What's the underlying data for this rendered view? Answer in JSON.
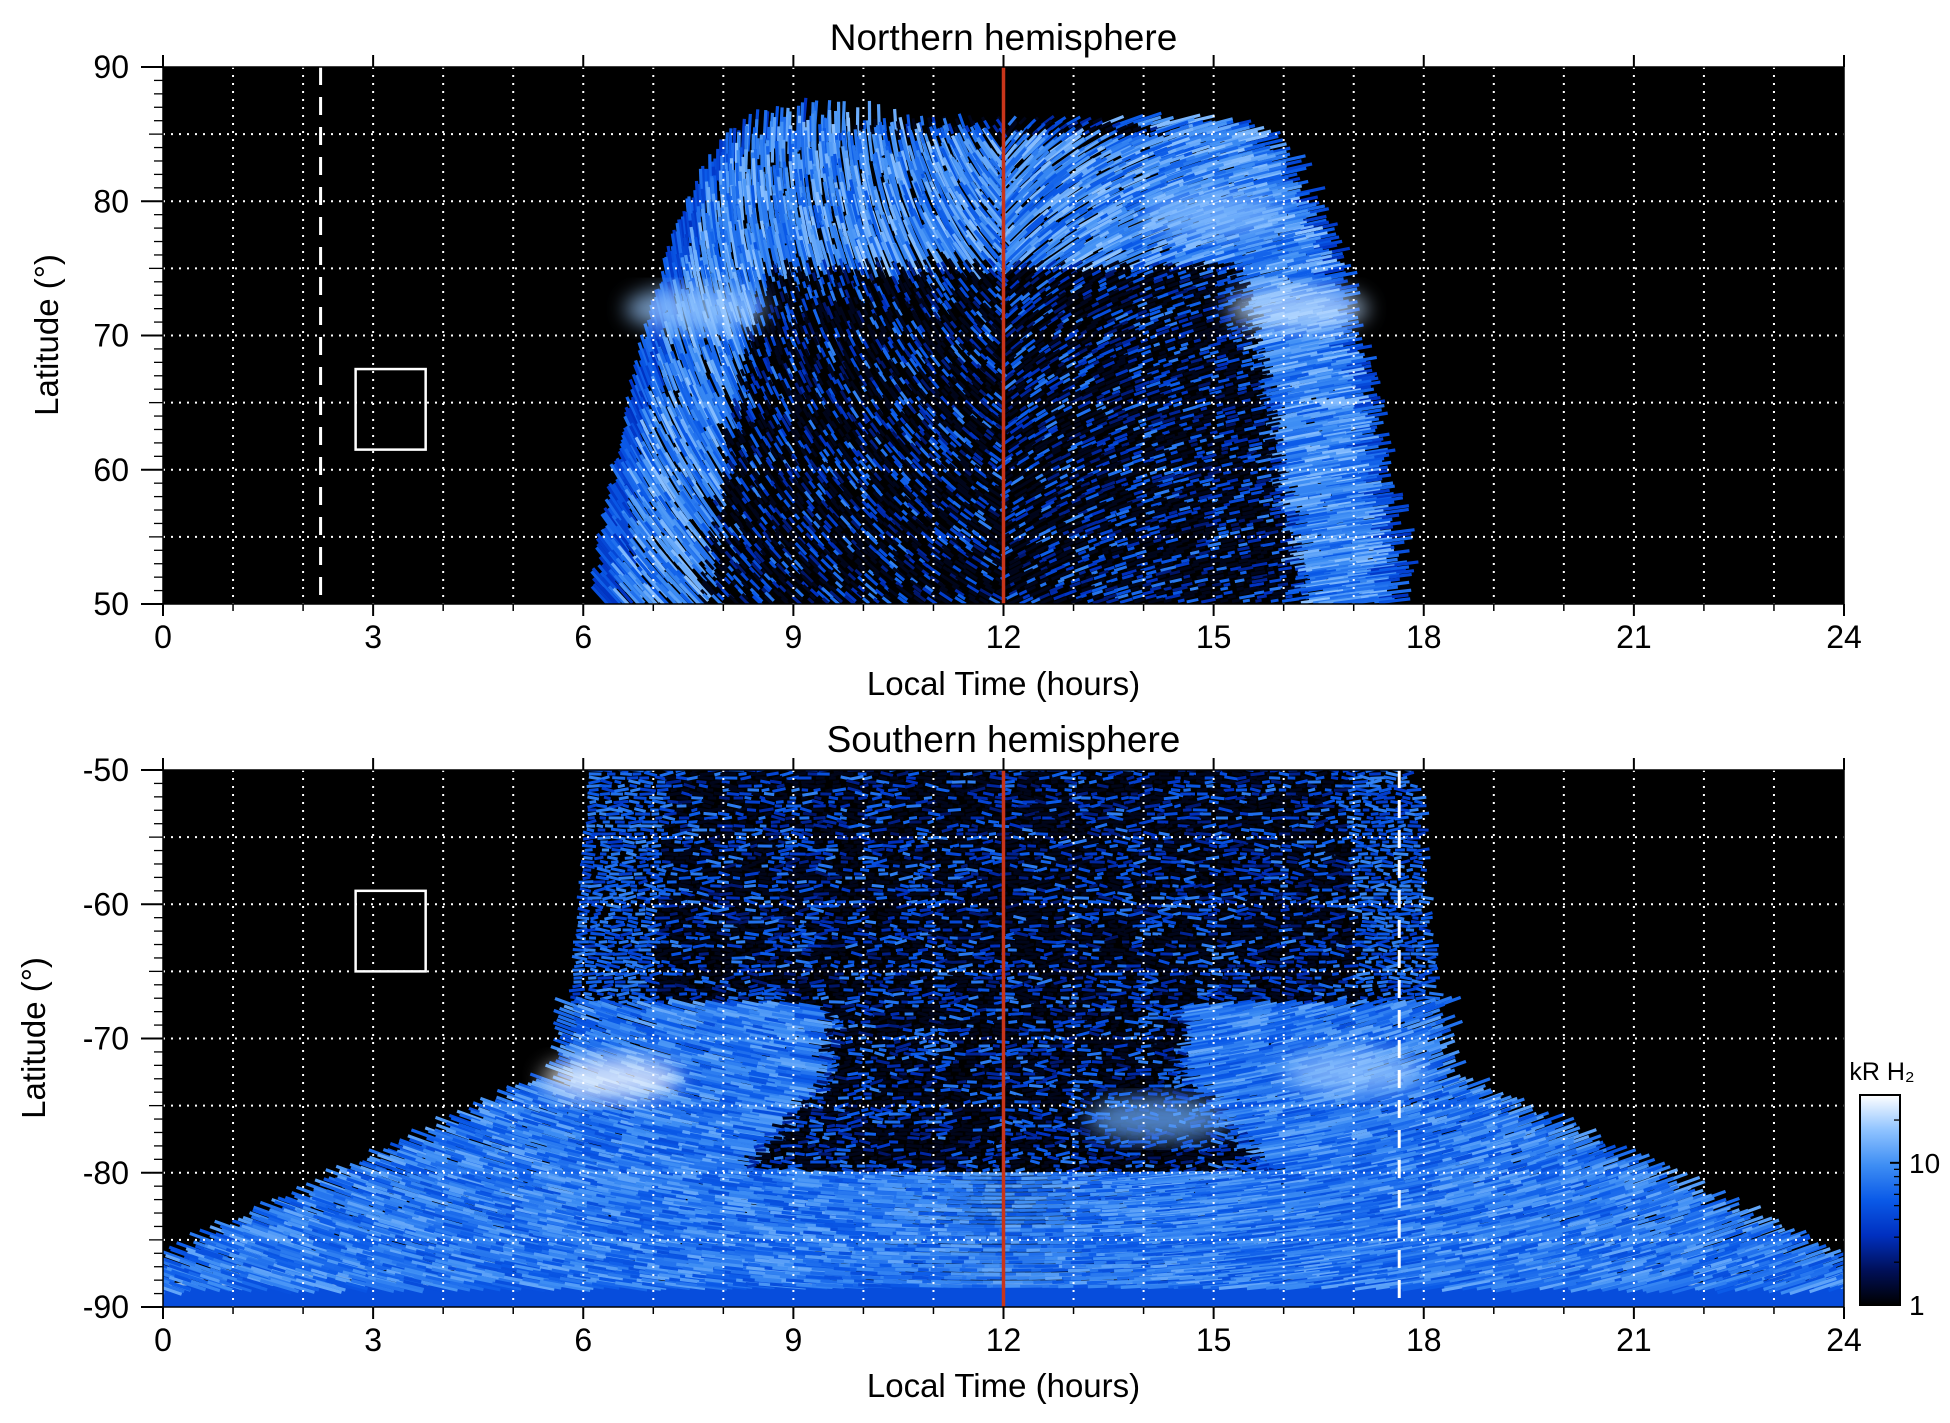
{
  "chart_data": [
    {
      "type": "heatmap",
      "title": "Northern hemisphere",
      "xlabel": "Local Time (hours)",
      "ylabel": "Latitude (°)",
      "xlim": [
        0,
        24
      ],
      "ylim": [
        50,
        90
      ],
      "xticks": [
        "0",
        "3",
        "6",
        "9",
        "12",
        "15",
        "18",
        "21",
        "24"
      ],
      "xtick_values": [
        0,
        3,
        6,
        9,
        12,
        15,
        18,
        21,
        24
      ],
      "yticks": [
        "50",
        "60",
        "70",
        "80",
        "90"
      ],
      "ytick_values": [
        50,
        60,
        70,
        80,
        90
      ],
      "grid": true,
      "grid_x_values": [
        1,
        2,
        3,
        4,
        5,
        6,
        7,
        8,
        9,
        10,
        11,
        12,
        13,
        14,
        15,
        16,
        17,
        18,
        19,
        20,
        21,
        22,
        23
      ],
      "grid_y_values": [
        55,
        60,
        65,
        70,
        75,
        80,
        85
      ],
      "noon_line_lt": 12,
      "dashed_line_lt": 2.25,
      "box": {
        "lt": [
          2.75,
          3.75
        ],
        "lat": [
          61.5,
          67.5
        ]
      },
      "emission_extent": {
        "top_lat": 86,
        "left_lt": 6.3,
        "right_lt": 17.7
      },
      "main_oval": {
        "center_lt": 12,
        "outer_half_width": 5.3,
        "inner_half_width": 3.9,
        "outer_lat": 84,
        "inner_lat": 75.5
      },
      "hot_spots": [
        {
          "lt": 7.6,
          "lat": 72,
          "level": 0.85
        },
        {
          "lt": 16.2,
          "lat": 72,
          "level": 0.9
        },
        {
          "lt": 15.0,
          "lat": 79,
          "level": 0.8
        }
      ]
    },
    {
      "type": "heatmap",
      "title": "Southern hemisphere",
      "xlabel": "Local Time (hours)",
      "ylabel": "Latitude (°)",
      "xlim": [
        0,
        24
      ],
      "ylim": [
        -90,
        -50
      ],
      "xticks": [
        "0",
        "3",
        "6",
        "9",
        "12",
        "15",
        "18",
        "21",
        "24"
      ],
      "xtick_values": [
        0,
        3,
        6,
        9,
        12,
        15,
        18,
        21,
        24
      ],
      "yticks": [
        "-50",
        "-60",
        "-70",
        "-80",
        "-90"
      ],
      "ytick_values": [
        -50,
        -60,
        -70,
        -80,
        -90
      ],
      "grid": true,
      "grid_x_values": [
        1,
        2,
        3,
        4,
        5,
        6,
        7,
        8,
        9,
        10,
        11,
        12,
        13,
        14,
        15,
        16,
        17,
        18,
        19,
        20,
        21,
        22,
        23
      ],
      "grid_y_values": [
        -55,
        -60,
        -65,
        -70,
        -75,
        -80,
        -85
      ],
      "noon_line_lt": 12,
      "dashed_line_lt": 17.65,
      "box": {
        "lt": [
          2.75,
          3.75
        ],
        "lat": [
          -65,
          -59
        ]
      },
      "emission_extent": {
        "left_lt": 5.8,
        "right_lt": 18.3
      },
      "hot_spots": [
        {
          "lt": 6.4,
          "lat": -73,
          "level": 1.0
        },
        {
          "lt": 17.0,
          "lat": -72.5,
          "level": 0.85
        },
        {
          "lt": 14.2,
          "lat": -76,
          "level": 0.75
        }
      ]
    }
  ],
  "colorbar": {
    "title": "kR H₂",
    "tick_labels": [
      "1",
      "10"
    ],
    "tick_values": [
      1,
      10
    ],
    "range": [
      1,
      30
    ],
    "scale": "log",
    "colors": [
      "#000000",
      "#00105a",
      "#0030c0",
      "#0a5ae8",
      "#3e8ef4",
      "#8fc3ff",
      "#ffffff"
    ]
  },
  "colors": {
    "background": "#000000",
    "noon_line": "#c8351a",
    "grid": "#ffffff"
  }
}
